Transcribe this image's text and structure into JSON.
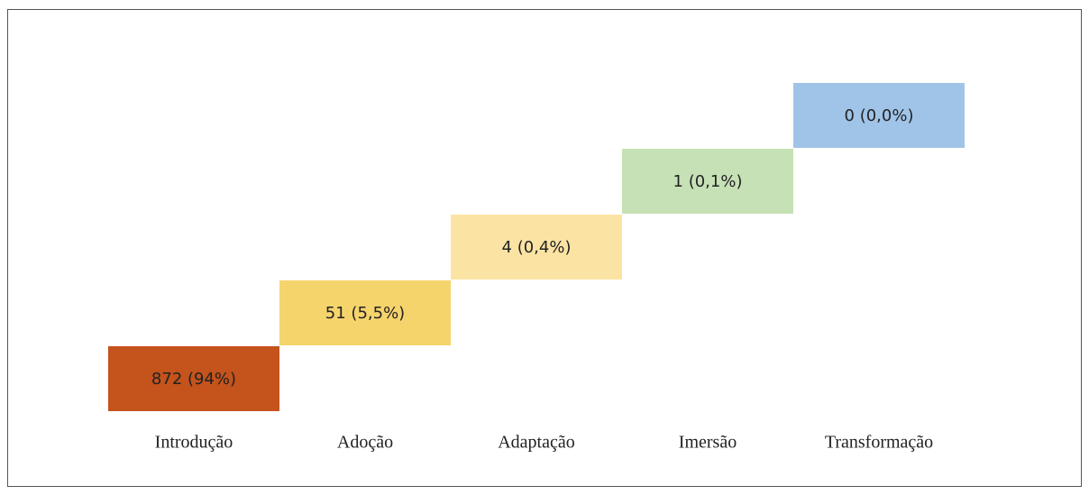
{
  "steps": [
    {
      "text": "872 (94%)",
      "label": "Introdução",
      "color": "#c4531c"
    },
    {
      "text": "51 (5,5%)",
      "label": "Adoção",
      "color": "#f6d46c"
    },
    {
      "text": "4 (0,4%)",
      "label": "Adaptação",
      "color": "#fbe4a3"
    },
    {
      "text": "1 (0,1%)",
      "label": "Imersão",
      "color": "#c6e1b6"
    },
    {
      "text": "0 (0,0%)",
      "label": "Transformação",
      "color": "#a0c4e8"
    }
  ]
}
